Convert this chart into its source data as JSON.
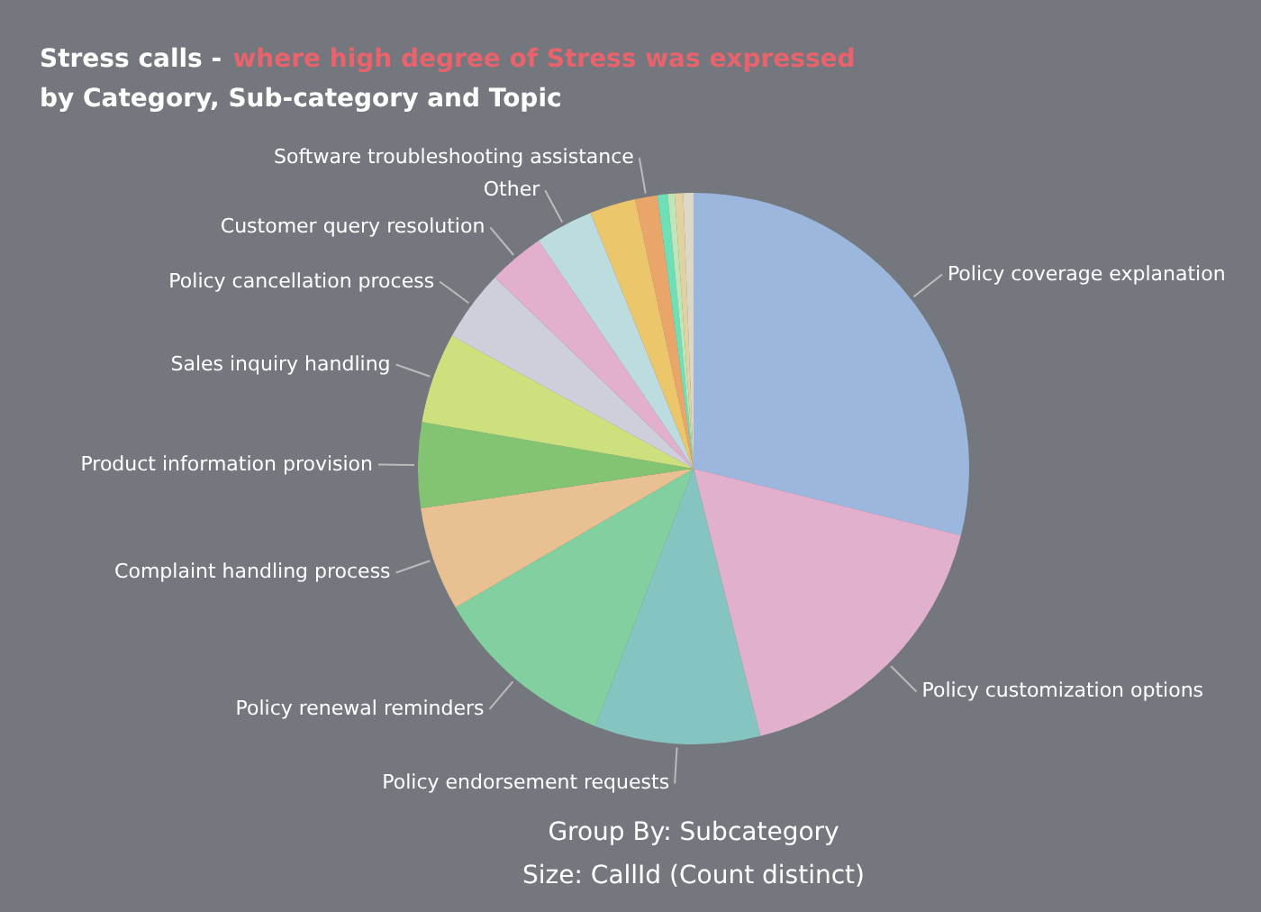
{
  "chart_data": {
    "type": "pie",
    "title": "Stress calls -",
    "subtitle": "by Category, Sub-category and Topic",
    "annotations": [
      "where high degree of Stress was expressed",
      "Group By: Subcategory",
      "Size: CallId (Count distinct)"
    ],
    "categories": [
      "Policy coverage explanation",
      "Policy customization options",
      "Policy endorsement requests",
      "Policy renewal reminders",
      "Complaint handling process",
      "Product information provision",
      "Sales inquiry handling",
      "Policy cancellation process",
      "Customer query resolution",
      "Other",
      null,
      "Software troubleshooting assistance",
      null,
      null,
      null,
      null
    ],
    "values": [
      28.9,
      17.2,
      9.7,
      10.8,
      6.1,
      5.0,
      5.3,
      4.2,
      3.3,
      3.4,
      2.7,
      1.3,
      0.6,
      0.4,
      0.5,
      0.6
    ],
    "colors": [
      "#9bb7dd",
      "#e0b0cc",
      "#86c4c2",
      "#82cfa0",
      "#e8c092",
      "#82c472",
      "#cde07e",
      "#cfcfdc",
      "#e2b0cc",
      "#bcdce0",
      "#ecc66a",
      "#eaa66a",
      "#6ee0b8",
      "#bfe6b8",
      "#e2d2a0",
      "#dcd8c8"
    ]
  }
}
